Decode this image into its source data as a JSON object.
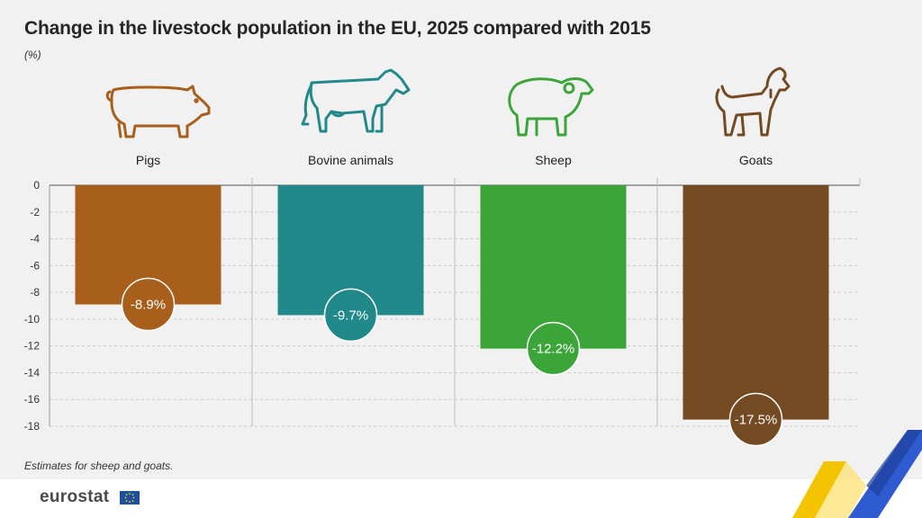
{
  "title": "Change in the livestock population in the EU, 2025 compared with 2015",
  "unit": "(%)",
  "note": "Estimates for sheep and goats.",
  "logo": "eurostat",
  "colors": {
    "pigs": "#a85f1c",
    "bovine": "#21898a",
    "sheep": "#3ba53a",
    "goats": "#744a22",
    "background": "#f1f1f1"
  },
  "icons": [
    "pig-icon",
    "cow-icon",
    "sheep-icon",
    "goat-icon"
  ],
  "chart_data": {
    "type": "bar",
    "categories": [
      "Pigs",
      "Bovine animals",
      "Sheep",
      "Goats"
    ],
    "values": [
      -8.9,
      -9.7,
      -12.2,
      -17.5
    ],
    "value_labels": [
      "-8.9%",
      "-9.7%",
      "-12.2%",
      "-17.5%"
    ],
    "ylim": [
      -18,
      0
    ],
    "yticks": [
      "0",
      "-2",
      "-4",
      "-6",
      "-8",
      "-10",
      "-12",
      "-14",
      "-16",
      "-18"
    ],
    "grid": true
  }
}
